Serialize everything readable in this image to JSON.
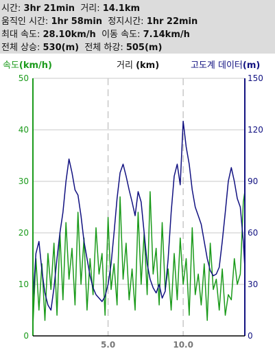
{
  "summary": {
    "time_label": "시간:",
    "time_value": "3hr 21min",
    "distance_label": "거리:",
    "distance_value": "14.1km",
    "moving_label": "움직인 시간:",
    "moving_value": "1hr 58min",
    "stopped_label": "정지시간:",
    "stopped_value": "1hr 22min",
    "maxspeed_label": "최대 속도:",
    "maxspeed_value": "28.10km/h",
    "movespeed_label": "이동 속도:",
    "movespeed_value": "7.14km/h",
    "ascent_label": "전체 상승:",
    "ascent_value": "530(m)",
    "descent_label": "전체 하강:",
    "descent_value": "505(m)"
  },
  "legend": {
    "speed_label": "속도",
    "speed_unit": "(km/h)",
    "distance_label": "거리",
    "distance_unit": "(km)",
    "altitude_label": "고도계 데이터",
    "altitude_unit": "(m)"
  },
  "colors": {
    "speed": "#1a9a1a",
    "altitude": "#101080",
    "grid": "#c8c8c8",
    "summary_bg": "#dcdcdc"
  },
  "chart_data": {
    "type": "line",
    "x_range": [
      0,
      14.1
    ],
    "x_ticks": [
      "5.0",
      "10.0"
    ],
    "x_tick_values": [
      5.0,
      10.0
    ],
    "y_left": {
      "label": "속도",
      "unit": "(km/h)",
      "range": [
        0,
        50
      ],
      "ticks": [
        "0",
        "10",
        "20",
        "30",
        "40",
        "50"
      ]
    },
    "y_right": {
      "label": "고도계 데이터",
      "unit": "(m)",
      "range": [
        0,
        150
      ],
      "ticks": [
        "0",
        "30",
        "60",
        "90",
        "120",
        "150"
      ]
    },
    "series": [
      {
        "name": "속도",
        "axis": "left",
        "x": [
          0,
          0.2,
          0.4,
          0.6,
          0.8,
          1,
          1.2,
          1.4,
          1.6,
          1.8,
          2,
          2.2,
          2.4,
          2.6,
          2.8,
          3,
          3.2,
          3.4,
          3.6,
          3.8,
          4,
          4.2,
          4.4,
          4.6,
          4.8,
          5,
          5.2,
          5.4,
          5.6,
          5.8,
          6,
          6.2,
          6.4,
          6.6,
          6.8,
          7,
          7.2,
          7.4,
          7.6,
          7.8,
          8,
          8.2,
          8.4,
          8.6,
          8.8,
          9,
          9.2,
          9.4,
          9.6,
          9.8,
          10,
          10.2,
          10.4,
          10.6,
          10.8,
          11,
          11.2,
          11.4,
          11.6,
          11.8,
          12,
          12.2,
          12.4,
          12.6,
          12.8,
          13,
          13.2,
          13.4,
          13.6,
          13.8,
          14,
          14.1
        ],
        "values": [
          2,
          15,
          5,
          14,
          3,
          16,
          9,
          18,
          4,
          20,
          7,
          22,
          11,
          17,
          6,
          24,
          10,
          19,
          5,
          15,
          8,
          21,
          12,
          16,
          4,
          23,
          9,
          14,
          6,
          27,
          11,
          18,
          7,
          13,
          5,
          24,
          10,
          20,
          8,
          28,
          12,
          17,
          6,
          22,
          9,
          13,
          5,
          16,
          7,
          19,
          10,
          15,
          4,
          21,
          8,
          12,
          6,
          14,
          3,
          18,
          9,
          11,
          5,
          13,
          4,
          8,
          7,
          15,
          10,
          12,
          26,
          28
        ]
      },
      {
        "name": "고도계 데이터",
        "axis": "right",
        "x": [
          0,
          0.2,
          0.4,
          0.6,
          0.8,
          1,
          1.2,
          1.4,
          1.6,
          1.8,
          2,
          2.2,
          2.4,
          2.6,
          2.8,
          3,
          3.2,
          3.4,
          3.6,
          3.8,
          4,
          4.2,
          4.4,
          4.6,
          4.8,
          5,
          5.2,
          5.4,
          5.6,
          5.8,
          6,
          6.2,
          6.4,
          6.6,
          6.8,
          7,
          7.2,
          7.4,
          7.6,
          7.8,
          8,
          8.2,
          8.4,
          8.6,
          8.8,
          9,
          9.2,
          9.4,
          9.6,
          9.8,
          10,
          10.2,
          10.4,
          10.6,
          10.8,
          11,
          11.2,
          11.4,
          11.6,
          11.8,
          12,
          12.2,
          12.4,
          12.6,
          12.8,
          13,
          13.2,
          13.4,
          13.6,
          13.8,
          14,
          14.1
        ],
        "values": [
          20,
          48,
          55,
          38,
          25,
          18,
          15,
          28,
          45,
          60,
          72,
          90,
          103,
          95,
          85,
          82,
          70,
          55,
          45,
          35,
          28,
          24,
          22,
          20,
          23,
          30,
          42,
          60,
          80,
          95,
          100,
          93,
          85,
          78,
          70,
          84,
          78,
          60,
          42,
          33,
          28,
          25,
          30,
          22,
          26,
          45,
          72,
          93,
          100,
          88,
          125,
          110,
          100,
          85,
          75,
          70,
          65,
          55,
          45,
          38,
          35,
          36,
          40,
          55,
          72,
          90,
          98,
          90,
          80,
          75,
          55,
          40
        ]
      }
    ],
    "grid": true,
    "legend": "top"
  }
}
